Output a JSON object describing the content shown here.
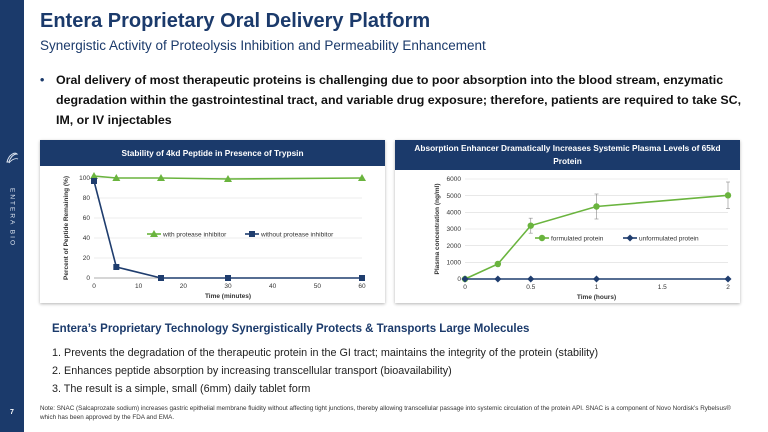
{
  "slide": {
    "title": "Entera Proprietary Oral Delivery Platform",
    "subtitle": "Synergistic Activity of Proteolysis Inhibition and Permeability Enhancement",
    "page_number": "7",
    "brand_text": "ENTERA BIO",
    "accent_color": "#1b3a6b"
  },
  "bullet": {
    "marker": "•",
    "text": "Oral delivery of most therapeutic proteins is challenging due to poor absorption into the blood stream, enzymatic degradation within the gastrointestinal tract, and variable drug exposure; therefore, patients are required to take SC, IM, or IV injectables"
  },
  "chart_left_header": "Stability of 4kd Peptide in Presence of Trypsin",
  "chart_right_header": "Absorption Enhancer Dramatically Increases Systemic Plasma Levels of 65kd Protein",
  "chart_data": [
    {
      "type": "line",
      "title": "Stability of 4kd Peptide in Presence of Trypsin",
      "xlabel": "Time (minutes)",
      "ylabel": "Percent of Peptide Remaining (%)",
      "xlim": [
        0,
        60
      ],
      "ylim": [
        0,
        100
      ],
      "xticks": [
        0,
        10,
        20,
        30,
        40,
        50,
        60
      ],
      "yticks": [
        0,
        20,
        40,
        60,
        80,
        100
      ],
      "legend_position": "center",
      "series": [
        {
          "name": "with protease inhibitor",
          "marker": "triangle",
          "color": "#6ab43e",
          "x": [
            0,
            5,
            15,
            30,
            60
          ],
          "y": [
            102,
            100,
            100,
            99,
            100
          ]
        },
        {
          "name": "without protease inhibitor",
          "marker": "square",
          "color": "#1f3d6e",
          "x": [
            0,
            5,
            15,
            30,
            60
          ],
          "y": [
            97,
            11,
            0,
            0,
            0
          ]
        }
      ]
    },
    {
      "type": "line",
      "title": "Absorption Enhancer Dramatically Increases Systemic Plasma Levels of 65kd Protein",
      "xlabel": "Time (hours)",
      "ylabel": "Plasma concentration (ng/ml)",
      "xlim": [
        0,
        2
      ],
      "ylim": [
        0,
        6000
      ],
      "xticks": [
        0,
        0.5,
        1,
        1.5,
        2
      ],
      "yticks": [
        0,
        1000,
        2000,
        3000,
        4000,
        5000,
        6000
      ],
      "legend_position": "center",
      "series": [
        {
          "name": "formulated protein",
          "marker": "circle",
          "color": "#6ab43e",
          "x": [
            0,
            0.25,
            0.5,
            1,
            2
          ],
          "y": [
            0,
            900,
            3200,
            4350,
            5020
          ],
          "error": [
            0,
            150,
            450,
            750,
            800
          ]
        },
        {
          "name": "unformulated protein",
          "marker": "diamond",
          "color": "#1f3d6e",
          "x": [
            0,
            0.25,
            0.5,
            1,
            2
          ],
          "y": [
            0,
            0,
            0,
            0,
            0
          ]
        }
      ]
    }
  ],
  "summary": {
    "title": "Entera’s Proprietary Technology Synergistically Protects & Transports Large Molecules",
    "items": [
      "1. Prevents the degradation of the therapeutic protein in the GI tract; maintains the integrity of the protein (stability)",
      "2. Enhances peptide absorption by increasing transcellular transport (bioavailability)",
      "3. The result is a simple, small (6mm) daily tablet form"
    ]
  },
  "note": "Note: SNAC (Salcaprozate sodium) increases gastric epithelial membrane fluidity without affecting tight junctions, thereby allowing transcellular passage into systemic circulation of the protein API. SNAC is a component of Novo Nordisk’s Rybelsus® which has been approved by the FDA and EMA."
}
